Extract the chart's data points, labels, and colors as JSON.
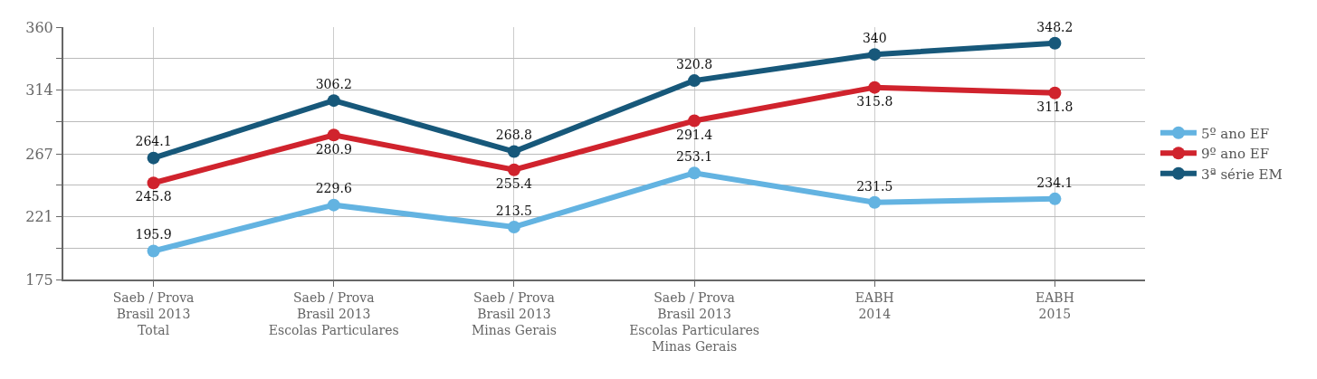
{
  "chart_data": {
    "type": "line",
    "categories": [
      "Saeb / Prova\nBrasil 2013\nTotal",
      "Saeb / Prova\nBrasil 2013\nEscolas Particulares",
      "Saeb / Prova\nBrasil 2013\nMinas Gerais",
      "Saeb / Prova\nBrasil 2013\nEscolas Particulares\nMinas Gerais",
      "EABH\n2014",
      "EABH\n2015"
    ],
    "series": [
      {
        "name": "5º ano EF",
        "color": "#63b3e1",
        "values": [
          195.9,
          229.6,
          213.5,
          253.1,
          231.5,
          234.1
        ]
      },
      {
        "name": "9º ano EF",
        "color": "#d0232d",
        "values": [
          245.8,
          280.9,
          255.4,
          291.4,
          315.8,
          311.8
        ]
      },
      {
        "name": "3ª série EM",
        "color": "#17587a",
        "values": [
          264.1,
          306.2,
          268.8,
          320.8,
          340,
          348.2
        ]
      }
    ],
    "ylim": [
      175,
      360
    ],
    "yticks": [
      175,
      {
        "value": 198,
        "label": null
      },
      221,
      {
        "value": 244,
        "label": null
      },
      267,
      {
        "value": 290.5,
        "label": null
      },
      314,
      {
        "value": 337,
        "label": null
      },
      360
    ],
    "grid": true,
    "legend": "right",
    "marker": "circle",
    "line_style": "solid",
    "data_labels": true
  }
}
